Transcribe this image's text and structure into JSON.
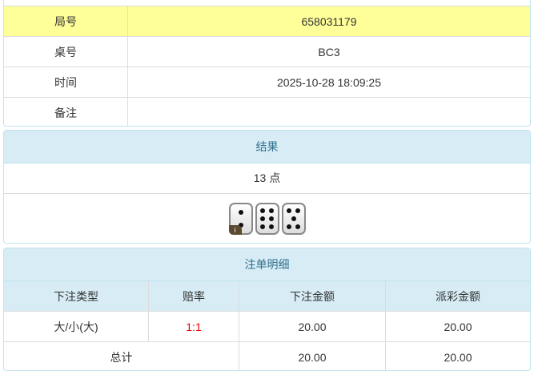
{
  "info": {
    "rows": [
      {
        "label": "局号",
        "value": "658031179"
      },
      {
        "label": "桌号",
        "value": "BC3"
      },
      {
        "label": "时间",
        "value": "2025-10-28 18:09:25"
      },
      {
        "label": "备注",
        "value": ""
      }
    ]
  },
  "result": {
    "title": "结果",
    "points": "13 点",
    "dice": [
      2,
      6,
      5
    ],
    "badge": "i"
  },
  "bets": {
    "title": "注单明细",
    "headers": [
      "下注类型",
      "赔率",
      "下注金额",
      "派彩金额"
    ],
    "rows": [
      {
        "type": "大/小(大)",
        "odds": "1:1",
        "amount": "20.00",
        "payout": "20.00"
      }
    ],
    "total": {
      "label": "总计",
      "amount": "20.00",
      "payout": "20.00"
    }
  },
  "colors": {
    "highlight": "#ffff99",
    "header": "#d7ecf5",
    "odds": "#e00000"
  }
}
